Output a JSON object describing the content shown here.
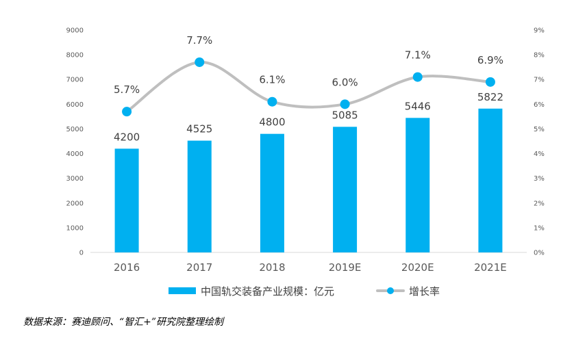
{
  "chart_data": {
    "type": "bar",
    "categories": [
      "2016",
      "2017",
      "2018",
      "2019E",
      "2020E",
      "2021E"
    ],
    "series": [
      {
        "name": "中国轨交装备产业规模：亿元",
        "type": "bar",
        "axis": "left",
        "values": [
          4200,
          4525,
          4800,
          5085,
          5446,
          5822
        ],
        "labels": [
          "4200",
          "4525",
          "4800",
          "5085",
          "5446",
          "5822"
        ],
        "color": "#00B0F0"
      },
      {
        "name": "增长率",
        "type": "line",
        "axis": "right",
        "values": [
          5.7,
          7.7,
          6.1,
          6.0,
          7.1,
          6.9
        ],
        "labels": [
          "5.7%",
          "7.7%",
          "6.1%",
          "6.0%",
          "7.1%",
          "6.9%"
        ],
        "color": "#BFBFBF",
        "marker_color": "#00B0F0"
      }
    ],
    "ylim": [
      0,
      9000
    ],
    "y_ticks": [
      "0",
      "1000",
      "2000",
      "3000",
      "4000",
      "5000",
      "6000",
      "7000",
      "8000",
      "9000"
    ],
    "y2lim": [
      0,
      9
    ],
    "y2_ticks": [
      "0%",
      "1%",
      "2%",
      "3%",
      "4%",
      "5%",
      "6%",
      "7%",
      "8%",
      "9%"
    ],
    "legend_position": "bottom",
    "grid": false
  },
  "legend": {
    "bar_label": "中国轨交装备产业规模：亿元",
    "line_label": "增长率"
  },
  "source_note": "数据来源：赛迪顾问、“智汇+”研究院整理绘制"
}
